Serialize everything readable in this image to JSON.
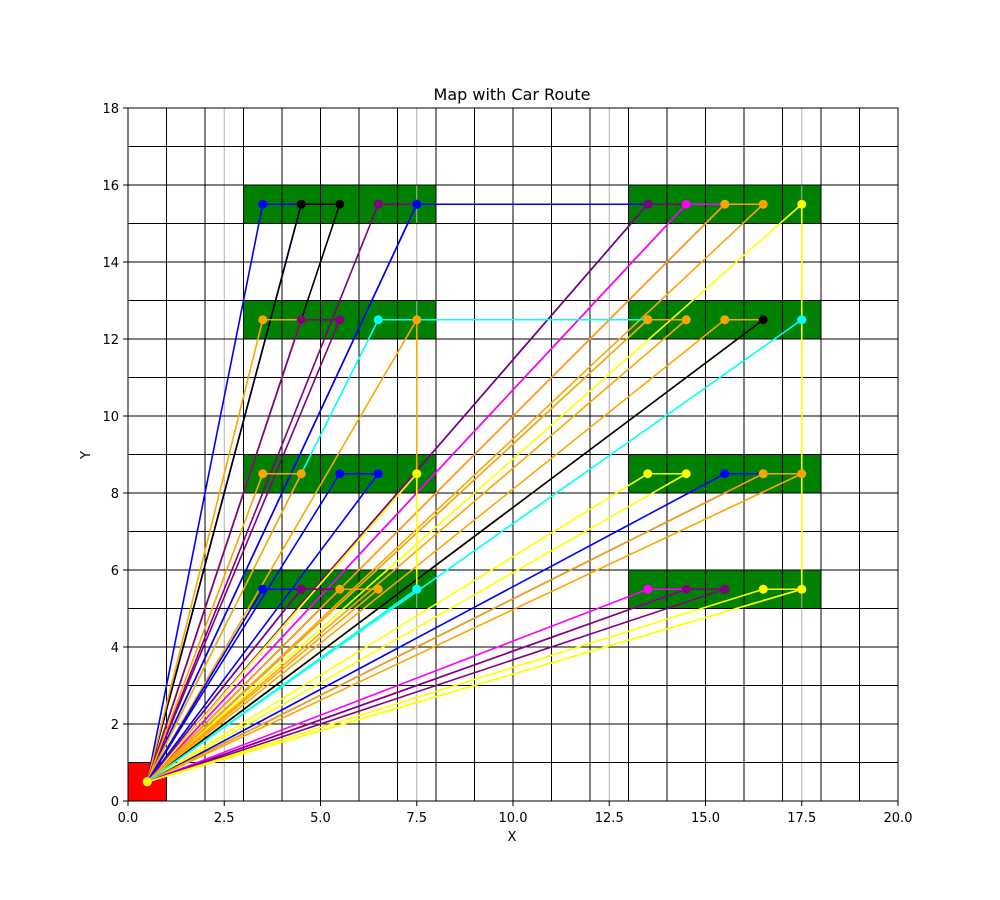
{
  "chart_data": {
    "type": "line",
    "title": "Map with Car Route",
    "xlabel": "X",
    "ylabel": "Y",
    "xlim": [
      0,
      20
    ],
    "ylim": [
      0,
      18
    ],
    "xticks": [
      0.0,
      2.5,
      5.0,
      7.5,
      10.0,
      12.5,
      15.0,
      17.5,
      20.0
    ],
    "xtick_labels": [
      "0.0",
      "2.5",
      "5.0",
      "7.5",
      "10.0",
      "12.5",
      "15.0",
      "17.5",
      "20.0"
    ],
    "yticks": [
      0,
      2,
      4,
      6,
      8,
      10,
      12,
      14,
      16,
      18
    ],
    "ytick_labels": [
      "0",
      "2",
      "4",
      "6",
      "8",
      "10",
      "12",
      "14",
      "16",
      "18"
    ],
    "grid": true,
    "cell_size": 1,
    "start": {
      "x": 0.5,
      "y": 0.5,
      "color": "#ff0000"
    },
    "shelves": [
      {
        "x": [
          3,
          8
        ],
        "y": [
          15,
          16
        ]
      },
      {
        "x": [
          3,
          8
        ],
        "y": [
          12,
          13
        ]
      },
      {
        "x": [
          3,
          8
        ],
        "y": [
          8,
          9
        ]
      },
      {
        "x": [
          3,
          8
        ],
        "y": [
          5,
          6
        ]
      },
      {
        "x": [
          13,
          18
        ],
        "y": [
          15,
          16
        ]
      },
      {
        "x": [
          13,
          18
        ],
        "y": [
          12,
          13
        ]
      },
      {
        "x": [
          13,
          18
        ],
        "y": [
          8,
          9
        ]
      },
      {
        "x": [
          13,
          18
        ],
        "y": [
          5,
          6
        ]
      }
    ],
    "shelf_color": "#008000",
    "routes": [
      {
        "color": "#0000ff",
        "points": [
          [
            0.5,
            0.5
          ],
          [
            3.5,
            15.5
          ],
          [
            4.5,
            15.5
          ],
          [
            0.5,
            0.5
          ]
        ]
      },
      {
        "color": "#000000",
        "points": [
          [
            0.5,
            0.5
          ],
          [
            4.5,
            15.5
          ],
          [
            5.5,
            15.5
          ],
          [
            0.5,
            0.5
          ]
        ]
      },
      {
        "color": "#800080",
        "points": [
          [
            0.5,
            0.5
          ],
          [
            6.5,
            15.5
          ],
          [
            7.5,
            15.5
          ],
          [
            0.5,
            0.5
          ]
        ]
      },
      {
        "color": "#0000ff",
        "points": [
          [
            0.5,
            0.5
          ],
          [
            7.5,
            15.5
          ],
          [
            13.5,
            15.5
          ],
          [
            0.5,
            0.5
          ]
        ]
      },
      {
        "color": "#800080",
        "points": [
          [
            0.5,
            0.5
          ],
          [
            13.5,
            15.5
          ],
          [
            14.5,
            15.5
          ],
          [
            0.5,
            0.5
          ]
        ]
      },
      {
        "color": "#ff00ff",
        "points": [
          [
            0.5,
            0.5
          ],
          [
            15.5,
            15.5
          ],
          [
            14.5,
            15.5
          ],
          [
            0.5,
            0.5
          ]
        ]
      },
      {
        "color": "#ffa500",
        "points": [
          [
            0.5,
            0.5
          ],
          [
            16.5,
            15.5
          ],
          [
            15.5,
            15.5
          ],
          [
            0.5,
            0.5
          ]
        ]
      },
      {
        "color": "#ffff00",
        "points": [
          [
            0.5,
            0.5
          ],
          [
            17.5,
            15.5
          ],
          [
            17.5,
            5.5
          ],
          [
            0.5,
            0.5
          ]
        ]
      },
      {
        "color": "#ffa500",
        "points": [
          [
            0.5,
            0.5
          ],
          [
            3.5,
            12.5
          ],
          [
            4.5,
            12.5
          ],
          [
            0.5,
            0.5
          ]
        ]
      },
      {
        "color": "#800080",
        "points": [
          [
            0.5,
            0.5
          ],
          [
            5.5,
            12.5
          ],
          [
            4.5,
            12.5
          ],
          [
            0.5,
            0.5
          ]
        ]
      },
      {
        "color": "#00ffff",
        "points": [
          [
            0.5,
            0.5
          ],
          [
            6.5,
            12.5
          ],
          [
            13.5,
            12.5
          ],
          [
            0.5,
            0.5
          ]
        ]
      },
      {
        "color": "#ffa500",
        "points": [
          [
            0.5,
            0.5
          ],
          [
            7.5,
            12.5
          ],
          [
            7.5,
            8.5
          ],
          [
            0.5,
            0.5
          ]
        ]
      },
      {
        "color": "#ffa500",
        "points": [
          [
            0.5,
            0.5
          ],
          [
            13.5,
            12.5
          ],
          [
            14.5,
            12.5
          ],
          [
            0.5,
            0.5
          ]
        ]
      },
      {
        "color": "#ffa500",
        "points": [
          [
            0.5,
            0.5
          ],
          [
            15.5,
            12.5
          ],
          [
            16.5,
            12.5
          ],
          [
            0.5,
            0.5
          ]
        ]
      },
      {
        "color": "#000000",
        "points": [
          [
            0.5,
            0.5
          ],
          [
            16.5,
            12.5
          ]
        ]
      },
      {
        "color": "#00ffff",
        "points": [
          [
            0.5,
            0.5
          ],
          [
            17.5,
            12.5
          ],
          [
            17.5,
            12.5
          ],
          [
            0.5,
            0.5
          ]
        ]
      },
      {
        "color": "#ffa500",
        "points": [
          [
            0.5,
            0.5
          ],
          [
            3.5,
            8.5
          ],
          [
            4.5,
            8.5
          ],
          [
            0.5,
            0.5
          ]
        ]
      },
      {
        "color": "#0000ff",
        "points": [
          [
            0.5,
            0.5
          ],
          [
            5.5,
            8.5
          ],
          [
            6.5,
            8.5
          ],
          [
            0.5,
            0.5
          ]
        ]
      },
      {
        "color": "#ffff00",
        "points": [
          [
            0.5,
            0.5
          ],
          [
            7.5,
            8.5
          ],
          [
            7.5,
            5.5
          ],
          [
            0.5,
            0.5
          ]
        ]
      },
      {
        "color": "#ffff00",
        "points": [
          [
            0.5,
            0.5
          ],
          [
            13.5,
            8.5
          ],
          [
            14.5,
            8.5
          ],
          [
            0.5,
            0.5
          ]
        ]
      },
      {
        "color": "#0000ff",
        "points": [
          [
            0.5,
            0.5
          ],
          [
            15.5,
            8.5
          ],
          [
            16.5,
            8.5
          ],
          [
            0.5,
            0.5
          ]
        ]
      },
      {
        "color": "#ffa500",
        "points": [
          [
            0.5,
            0.5
          ],
          [
            16.5,
            8.5
          ],
          [
            17.5,
            8.5
          ],
          [
            0.5,
            0.5
          ]
        ]
      },
      {
        "color": "#0000ff",
        "points": [
          [
            0.5,
            0.5
          ],
          [
            3.5,
            5.5
          ],
          [
            4.5,
            5.5
          ],
          [
            0.5,
            0.5
          ]
        ]
      },
      {
        "color": "#800080",
        "points": [
          [
            0.5,
            0.5
          ],
          [
            4.5,
            5.5
          ],
          [
            5.5,
            5.5
          ],
          [
            0.5,
            0.5
          ]
        ]
      },
      {
        "color": "#ffa500",
        "points": [
          [
            0.5,
            0.5
          ],
          [
            5.5,
            5.5
          ],
          [
            6.5,
            5.5
          ],
          [
            0.5,
            0.5
          ]
        ]
      },
      {
        "color": "#00ffff",
        "points": [
          [
            0.5,
            0.5
          ],
          [
            7.5,
            5.5
          ],
          [
            0.5,
            0.5
          ]
        ]
      },
      {
        "color": "#ff00ff",
        "points": [
          [
            0.5,
            0.5
          ],
          [
            13.5,
            5.5
          ],
          [
            14.5,
            5.5
          ],
          [
            0.5,
            0.5
          ]
        ]
      },
      {
        "color": "#800080",
        "points": [
          [
            0.5,
            0.5
          ],
          [
            14.5,
            5.5
          ],
          [
            15.5,
            5.5
          ],
          [
            0.5,
            0.5
          ]
        ]
      },
      {
        "color": "#ffff00",
        "points": [
          [
            0.5,
            0.5
          ],
          [
            16.5,
            5.5
          ],
          [
            17.5,
            5.5
          ],
          [
            0.5,
            0.5
          ]
        ]
      }
    ]
  }
}
